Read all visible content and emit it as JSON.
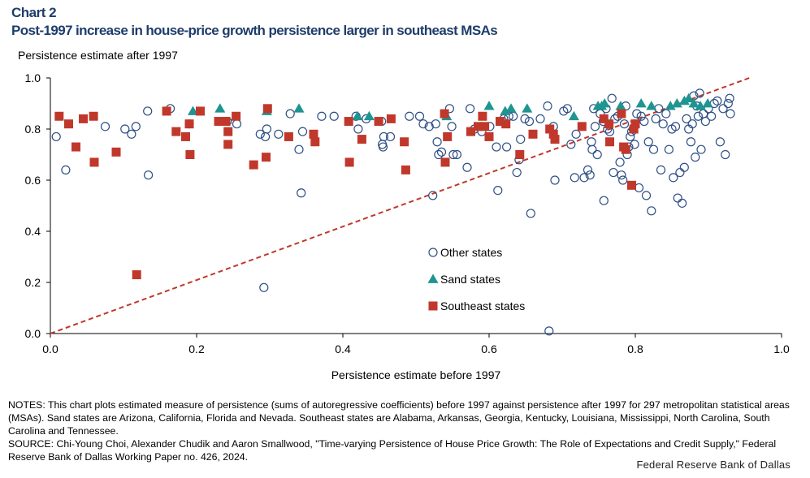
{
  "header": {
    "label": "Chart 2",
    "title": "Post-1997 increase in house-price growth persistence larger in southeast MSAs"
  },
  "notes": {
    "notes_text": "NOTES: This chart plots estimated measure of persistence (sums of autoregressive coefficients) before 1997 against persistence after 1997 for 297 metropolitan statistical areas (MSAs). Sand states are Arizona, California, Florida and Nevada. Southeast states are Alabama, Arkansas, Georgia, Kentucky, Louisiana, Mississippi, North Carolina, South Carolina and Tennessee.",
    "source_text": "SOURCE: Chi-Young Choi, Alexander Chudik and Aaron Smallwood, \"Time-varying Persistence of House Price Growth: The Role of Expectations and Credit Supply,\" Federal Reserve Bank of Dallas Working Paper no. 426, 2024."
  },
  "credit": "Federal Reserve Bank of Dallas",
  "colors": {
    "other": "#2e4f86",
    "sand": "#1e9590",
    "southeast": "#c0382b",
    "reference_line": "#c0382b"
  },
  "chart_data": {
    "type": "scatter",
    "xlabel": "Persistence estimate before 1997",
    "ylabel": "Persistence estimate after 1997",
    "xlim": [
      0,
      1
    ],
    "ylim": [
      0,
      1
    ],
    "x_ticks": [
      "0.0",
      "0.2",
      "0.4",
      "0.6",
      "0.8",
      "1.0"
    ],
    "y_ticks": [
      "0.0",
      "0.2",
      "0.4",
      "0.6",
      "0.8",
      "1.0"
    ],
    "grid": false,
    "legend_position": "center-right",
    "reference_line": {
      "style": "dashed",
      "from": [
        0,
        0
      ],
      "to": [
        0.956,
        1.0
      ]
    },
    "series": [
      {
        "name": "Other states",
        "marker": "circle",
        "points": [
          [
            0.008,
            0.77
          ],
          [
            0.021,
            0.64
          ],
          [
            0.075,
            0.81
          ],
          [
            0.102,
            0.8
          ],
          [
            0.111,
            0.78
          ],
          [
            0.117,
            0.81
          ],
          [
            0.133,
            0.87
          ],
          [
            0.134,
            0.62
          ],
          [
            0.164,
            0.88
          ],
          [
            0.19,
            0.82
          ],
          [
            0.242,
            0.83
          ],
          [
            0.255,
            0.82
          ],
          [
            0.287,
            0.78
          ],
          [
            0.292,
            0.18
          ],
          [
            0.294,
            0.77
          ],
          [
            0.296,
            0.8
          ],
          [
            0.312,
            0.78
          ],
          [
            0.328,
            0.86
          ],
          [
            0.34,
            0.72
          ],
          [
            0.343,
            0.55
          ],
          [
            0.345,
            0.79
          ],
          [
            0.371,
            0.85
          ],
          [
            0.388,
            0.85
          ],
          [
            0.418,
            0.85
          ],
          [
            0.421,
            0.8
          ],
          [
            0.432,
            0.84
          ],
          [
            0.453,
            0.83
          ],
          [
            0.454,
            0.74
          ],
          [
            0.455,
            0.73
          ],
          [
            0.456,
            0.77
          ],
          [
            0.465,
            0.77
          ],
          [
            0.491,
            0.85
          ],
          [
            0.505,
            0.85
          ],
          [
            0.51,
            0.82
          ],
          [
            0.518,
            0.81
          ],
          [
            0.523,
            0.54
          ],
          [
            0.527,
            0.82
          ],
          [
            0.529,
            0.75
          ],
          [
            0.531,
            0.7
          ],
          [
            0.535,
            0.71
          ],
          [
            0.546,
            0.88
          ],
          [
            0.549,
            0.81
          ],
          [
            0.551,
            0.7
          ],
          [
            0.556,
            0.7
          ],
          [
            0.57,
            0.65
          ],
          [
            0.574,
            0.88
          ],
          [
            0.58,
            0.8
          ],
          [
            0.59,
            0.79
          ],
          [
            0.601,
            0.81
          ],
          [
            0.61,
            0.73
          ],
          [
            0.612,
            0.56
          ],
          [
            0.62,
            0.84
          ],
          [
            0.624,
            0.73
          ],
          [
            0.627,
            0.85
          ],
          [
            0.633,
            0.85
          ],
          [
            0.638,
            0.63
          ],
          [
            0.641,
            0.68
          ],
          [
            0.643,
            0.76
          ],
          [
            0.649,
            0.84
          ],
          [
            0.655,
            0.83
          ],
          [
            0.657,
            0.47
          ],
          [
            0.67,
            0.84
          ],
          [
            0.68,
            0.89
          ],
          [
            0.682,
            0.01
          ],
          [
            0.688,
            0.81
          ],
          [
            0.69,
            0.6
          ],
          [
            0.702,
            0.87
          ],
          [
            0.707,
            0.88
          ],
          [
            0.712,
            0.74
          ],
          [
            0.717,
            0.61
          ],
          [
            0.719,
            0.78
          ],
          [
            0.73,
            0.61
          ],
          [
            0.735,
            0.64
          ],
          [
            0.738,
            0.62
          ],
          [
            0.74,
            0.75
          ],
          [
            0.741,
            0.72
          ],
          [
            0.743,
            0.88
          ],
          [
            0.745,
            0.81
          ],
          [
            0.748,
            0.7
          ],
          [
            0.752,
            0.86
          ],
          [
            0.756,
            0.83
          ],
          [
            0.757,
            0.52
          ],
          [
            0.76,
            0.88
          ],
          [
            0.762,
            0.8
          ],
          [
            0.765,
            0.79
          ],
          [
            0.768,
            0.92
          ],
          [
            0.77,
            0.63
          ],
          [
            0.772,
            0.84
          ],
          [
            0.776,
            0.85
          ],
          [
            0.779,
            0.67
          ],
          [
            0.781,
            0.62
          ],
          [
            0.783,
            0.6
          ],
          [
            0.785,
            0.82
          ],
          [
            0.787,
            0.89
          ],
          [
            0.789,
            0.7
          ],
          [
            0.791,
            0.73
          ],
          [
            0.793,
            0.77
          ],
          [
            0.795,
            0.79
          ],
          [
            0.797,
            0.8
          ],
          [
            0.799,
            0.74
          ],
          [
            0.802,
            0.86
          ],
          [
            0.805,
            0.57
          ],
          [
            0.808,
            0.85
          ],
          [
            0.812,
            0.83
          ],
          [
            0.815,
            0.54
          ],
          [
            0.818,
            0.75
          ],
          [
            0.822,
            0.48
          ],
          [
            0.825,
            0.72
          ],
          [
            0.828,
            0.84
          ],
          [
            0.832,
            0.88
          ],
          [
            0.835,
            0.64
          ],
          [
            0.838,
            0.82
          ],
          [
            0.842,
            0.86
          ],
          [
            0.846,
            0.72
          ],
          [
            0.85,
            0.8
          ],
          [
            0.852,
            0.61
          ],
          [
            0.855,
            0.81
          ],
          [
            0.858,
            0.53
          ],
          [
            0.861,
            0.63
          ],
          [
            0.864,
            0.51
          ],
          [
            0.867,
            0.65
          ],
          [
            0.87,
            0.84
          ],
          [
            0.873,
            0.8
          ],
          [
            0.876,
            0.75
          ],
          [
            0.878,
            0.82
          ],
          [
            0.88,
            0.93
          ],
          [
            0.882,
            0.69
          ],
          [
            0.884,
            0.89
          ],
          [
            0.886,
            0.85
          ],
          [
            0.888,
            0.94
          ],
          [
            0.89,
            0.72
          ],
          [
            0.893,
            0.86
          ],
          [
            0.896,
            0.83
          ],
          [
            0.9,
            0.88
          ],
          [
            0.904,
            0.85
          ],
          [
            0.908,
            0.9
          ],
          [
            0.912,
            0.91
          ],
          [
            0.916,
            0.75
          ],
          [
            0.92,
            0.88
          ],
          [
            0.923,
            0.7
          ],
          [
            0.927,
            0.9
          ],
          [
            0.929,
            0.92
          ],
          [
            0.93,
            0.86
          ]
        ]
      },
      {
        "name": "Sand states",
        "marker": "triangle",
        "points": [
          [
            0.195,
            0.87
          ],
          [
            0.232,
            0.88
          ],
          [
            0.296,
            0.87
          ],
          [
            0.34,
            0.88
          ],
          [
            0.42,
            0.85
          ],
          [
            0.436,
            0.85
          ],
          [
            0.542,
            0.85
          ],
          [
            0.6,
            0.89
          ],
          [
            0.622,
            0.87
          ],
          [
            0.63,
            0.88
          ],
          [
            0.652,
            0.88
          ],
          [
            0.716,
            0.85
          ],
          [
            0.749,
            0.89
          ],
          [
            0.754,
            0.89
          ],
          [
            0.758,
            0.9
          ],
          [
            0.78,
            0.89
          ],
          [
            0.808,
            0.9
          ],
          [
            0.822,
            0.89
          ],
          [
            0.848,
            0.89
          ],
          [
            0.857,
            0.9
          ],
          [
            0.867,
            0.91
          ],
          [
            0.873,
            0.92
          ],
          [
            0.88,
            0.9
          ],
          [
            0.889,
            0.89
          ],
          [
            0.899,
            0.9
          ]
        ]
      },
      {
        "name": "Southeast states",
        "marker": "square",
        "points": [
          [
            0.012,
            0.85
          ],
          [
            0.025,
            0.82
          ],
          [
            0.035,
            0.73
          ],
          [
            0.045,
            0.84
          ],
          [
            0.059,
            0.85
          ],
          [
            0.06,
            0.67
          ],
          [
            0.09,
            0.71
          ],
          [
            0.118,
            0.23
          ],
          [
            0.159,
            0.87
          ],
          [
            0.172,
            0.79
          ],
          [
            0.185,
            0.77
          ],
          [
            0.19,
            0.82
          ],
          [
            0.191,
            0.7
          ],
          [
            0.205,
            0.87
          ],
          [
            0.23,
            0.83
          ],
          [
            0.24,
            0.83
          ],
          [
            0.243,
            0.79
          ],
          [
            0.243,
            0.74
          ],
          [
            0.254,
            0.85
          ],
          [
            0.278,
            0.66
          ],
          [
            0.295,
            0.69
          ],
          [
            0.297,
            0.88
          ],
          [
            0.326,
            0.77
          ],
          [
            0.36,
            0.78
          ],
          [
            0.362,
            0.75
          ],
          [
            0.408,
            0.83
          ],
          [
            0.409,
            0.67
          ],
          [
            0.426,
            0.76
          ],
          [
            0.449,
            0.83
          ],
          [
            0.466,
            0.84
          ],
          [
            0.484,
            0.75
          ],
          [
            0.486,
            0.64
          ],
          [
            0.539,
            0.86
          ],
          [
            0.54,
            0.67
          ],
          [
            0.543,
            0.77
          ],
          [
            0.575,
            0.79
          ],
          [
            0.585,
            0.81
          ],
          [
            0.591,
            0.85
          ],
          [
            0.594,
            0.81
          ],
          [
            0.6,
            0.77
          ],
          [
            0.615,
            0.83
          ],
          [
            0.623,
            0.82
          ],
          [
            0.642,
            0.7
          ],
          [
            0.66,
            0.78
          ],
          [
            0.683,
            0.8
          ],
          [
            0.688,
            0.78
          ],
          [
            0.69,
            0.76
          ],
          [
            0.727,
            0.81
          ],
          [
            0.757,
            0.84
          ],
          [
            0.764,
            0.82
          ],
          [
            0.765,
            0.75
          ],
          [
            0.781,
            0.86
          ],
          [
            0.784,
            0.73
          ],
          [
            0.787,
            0.72
          ],
          [
            0.795,
            0.58
          ],
          [
            0.798,
            0.8
          ],
          [
            0.8,
            0.82
          ]
        ]
      }
    ]
  }
}
